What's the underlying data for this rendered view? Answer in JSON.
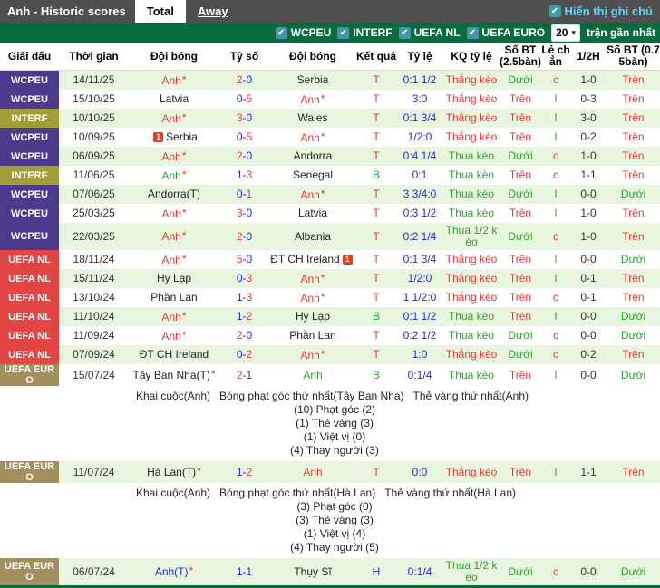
{
  "topbar": {
    "title": "Anh - Historic scores",
    "tabs": [
      {
        "label": "Total",
        "active": true
      },
      {
        "label": "Away",
        "active": false
      }
    ],
    "show_notes": {
      "label": "Hiển thị ghi chú",
      "checked": true
    }
  },
  "filterbar": {
    "filters": [
      {
        "label": "WCPEU",
        "checked": true
      },
      {
        "label": "INTERF",
        "checked": true
      },
      {
        "label": "UEFA NL",
        "checked": true
      },
      {
        "label": "UEFA EURO",
        "checked": true
      }
    ],
    "match_count": "20",
    "recent_label": "trận gần nhất"
  },
  "icons": {
    "check": "✔",
    "chevron": "▾",
    "red_card_count": "1"
  },
  "league_colors": {
    "WCPEU": "#4e3a8c",
    "INTERF": "#a19e35",
    "UEFA NL": "#e34444",
    "UEFA EURO": "#a38f5d"
  },
  "value_colors": {
    "red": "#e03a3a",
    "green": "#2ea12e",
    "blue": "#2626d6",
    "black": "#222222",
    "stripe": "#e9f6df",
    "bar_green": "#0a6c3e"
  },
  "table": {
    "headers": [
      "Giải đấu",
      "Thời gian",
      "Đội bóng",
      "Tỷ số",
      "Đội bóng",
      "Kết quả",
      "Tỷ lệ",
      "KQ tỷ lệ",
      "Số BT (2.5bàn)",
      "Lẻ chẳn",
      "1/2H",
      "Số BT (0.75bàn)"
    ],
    "rows": [
      {
        "league": "WCPEU",
        "date": "14/11/25",
        "home": {
          "n": "Anh",
          "c": "red",
          "star": true
        },
        "score": {
          "h": "2",
          "a": "0",
          "hc": "red",
          "ac": "blue"
        },
        "away": {
          "n": "Serbia",
          "c": "black"
        },
        "result": {
          "t": "T",
          "c": "red"
        },
        "odds": "0:1 1/2",
        "kq": {
          "t": "Thắng kèo",
          "c": "red"
        },
        "bt25": {
          "t": "Dưới",
          "c": "green"
        },
        "oe": {
          "t": "c",
          "c": "red"
        },
        "ht": "1-0",
        "bt075": {
          "t": "Trên",
          "c": "red"
        },
        "bg": "g"
      },
      {
        "league": "WCPEU",
        "date": "15/10/25",
        "home": {
          "n": "Latvia",
          "c": "black"
        },
        "score": {
          "h": "0",
          "a": "5",
          "hc": "blue",
          "ac": "red"
        },
        "away": {
          "n": "Anh",
          "c": "red",
          "star": true
        },
        "result": {
          "t": "T",
          "c": "red"
        },
        "odds": "3:0",
        "kq": {
          "t": "Thắng kèo",
          "c": "red"
        },
        "bt25": {
          "t": "Trên",
          "c": "red"
        },
        "oe": {
          "t": "l",
          "c": "green"
        },
        "ht": "0-3",
        "bt075": {
          "t": "Trên",
          "c": "red"
        },
        "bg": "w"
      },
      {
        "league": "INTERF",
        "date": "10/10/25",
        "home": {
          "n": "Anh",
          "c": "red",
          "star": true
        },
        "score": {
          "h": "3",
          "a": "0",
          "hc": "red",
          "ac": "blue"
        },
        "away": {
          "n": "Wales",
          "c": "black"
        },
        "result": {
          "t": "T",
          "c": "red"
        },
        "odds": "0:1 3/4",
        "kq": {
          "t": "Thắng kèo",
          "c": "red"
        },
        "bt25": {
          "t": "Trên",
          "c": "red"
        },
        "oe": {
          "t": "l",
          "c": "green"
        },
        "ht": "3-0",
        "bt075": {
          "t": "Trên",
          "c": "red"
        },
        "bg": "g"
      },
      {
        "league": "WCPEU",
        "date": "10/09/25",
        "home": {
          "n": "Serbia",
          "c": "black",
          "icon_before": true
        },
        "score": {
          "h": "0",
          "a": "5",
          "hc": "blue",
          "ac": "red"
        },
        "away": {
          "n": "Anh",
          "c": "red",
          "star": true
        },
        "result": {
          "t": "T",
          "c": "red"
        },
        "odds": "1/2:0",
        "kq": {
          "t": "Thắng kèo",
          "c": "red"
        },
        "bt25": {
          "t": "Trên",
          "c": "red"
        },
        "oe": {
          "t": "l",
          "c": "green"
        },
        "ht": "0-2",
        "bt075": {
          "t": "Trên",
          "c": "red"
        },
        "bg": "w"
      },
      {
        "league": "WCPEU",
        "date": "06/09/25",
        "home": {
          "n": "Anh",
          "c": "red",
          "star": true
        },
        "score": {
          "h": "2",
          "a": "0",
          "hc": "red",
          "ac": "blue"
        },
        "away": {
          "n": "Andorra",
          "c": "black"
        },
        "result": {
          "t": "T",
          "c": "red"
        },
        "odds": "0:4 1/4",
        "kq": {
          "t": "Thua kèo",
          "c": "green"
        },
        "bt25": {
          "t": "Dưới",
          "c": "green"
        },
        "oe": {
          "t": "c",
          "c": "red"
        },
        "ht": "1-0",
        "bt075": {
          "t": "Trên",
          "c": "red"
        },
        "bg": "g"
      },
      {
        "league": "INTERF",
        "date": "11/06/25",
        "home": {
          "n": "Anh",
          "c": "green",
          "star": true
        },
        "score": {
          "h": "1",
          "a": "3",
          "hc": "blue",
          "ac": "red"
        },
        "away": {
          "n": "Senegal",
          "c": "black"
        },
        "result": {
          "t": "B",
          "c": "green"
        },
        "odds": "0:1",
        "kq": {
          "t": "Thua kèo",
          "c": "green"
        },
        "bt25": {
          "t": "Trên",
          "c": "red"
        },
        "oe": {
          "t": "c",
          "c": "red"
        },
        "ht": "1-1",
        "bt075": {
          "t": "Trên",
          "c": "red"
        },
        "bg": "w"
      },
      {
        "league": "WCPEU",
        "date": "07/06/25",
        "home": {
          "n": "Andorra(T)",
          "c": "black"
        },
        "score": {
          "h": "0",
          "a": "1",
          "hc": "blue",
          "ac": "red"
        },
        "away": {
          "n": "Anh",
          "c": "red",
          "star": true
        },
        "result": {
          "t": "T",
          "c": "red"
        },
        "odds": "3 3/4:0",
        "kq": {
          "t": "Thua kèo",
          "c": "green"
        },
        "bt25": {
          "t": "Dưới",
          "c": "green"
        },
        "oe": {
          "t": "l",
          "c": "green"
        },
        "ht": "0-0",
        "bt075": {
          "t": "Dưới",
          "c": "green"
        },
        "bg": "g"
      },
      {
        "league": "WCPEU",
        "date": "25/03/25",
        "home": {
          "n": "Anh",
          "c": "red",
          "star": true
        },
        "score": {
          "h": "3",
          "a": "0",
          "hc": "red",
          "ac": "blue"
        },
        "away": {
          "n": "Latvia",
          "c": "black"
        },
        "result": {
          "t": "T",
          "c": "red"
        },
        "odds": "0:3 1/2",
        "kq": {
          "t": "Thua kèo",
          "c": "green"
        },
        "bt25": {
          "t": "Trên",
          "c": "red"
        },
        "oe": {
          "t": "l",
          "c": "green"
        },
        "ht": "1-0",
        "bt075": {
          "t": "Trên",
          "c": "red"
        },
        "bg": "w"
      },
      {
        "league": "WCPEU",
        "date": "22/03/25",
        "home": {
          "n": "Anh",
          "c": "red",
          "star": true
        },
        "score": {
          "h": "2",
          "a": "0",
          "hc": "red",
          "ac": "blue"
        },
        "away": {
          "n": "Albania",
          "c": "black"
        },
        "result": {
          "t": "T",
          "c": "red"
        },
        "odds": "0:2 1/4",
        "kq": {
          "t": "Thua 1/2 kèo",
          "c": "green"
        },
        "bt25": {
          "t": "Dưới",
          "c": "green"
        },
        "oe": {
          "t": "c",
          "c": "red"
        },
        "ht": "1-0",
        "bt075": {
          "t": "Trên",
          "c": "red"
        },
        "bg": "g"
      },
      {
        "league": "UEFA NL",
        "date": "18/11/24",
        "home": {
          "n": "Anh",
          "c": "red",
          "star": true
        },
        "score": {
          "h": "5",
          "a": "0",
          "hc": "red",
          "ac": "blue"
        },
        "away": {
          "n": "ĐT CH Ireland",
          "c": "black",
          "icon_after": true
        },
        "result": {
          "t": "T",
          "c": "red"
        },
        "odds": "0:1 3/4",
        "kq": {
          "t": "Thắng kèo",
          "c": "red"
        },
        "bt25": {
          "t": "Trên",
          "c": "red"
        },
        "oe": {
          "t": "l",
          "c": "green"
        },
        "ht": "0-0",
        "bt075": {
          "t": "Dưới",
          "c": "green"
        },
        "bg": "w"
      },
      {
        "league": "UEFA NL",
        "date": "15/11/24",
        "home": {
          "n": "Hy Lạp",
          "c": "black"
        },
        "score": {
          "h": "0",
          "a": "3",
          "hc": "blue",
          "ac": "red"
        },
        "away": {
          "n": "Anh",
          "c": "red",
          "star": true
        },
        "result": {
          "t": "T",
          "c": "red"
        },
        "odds": "1/2:0",
        "kq": {
          "t": "Thắng kèo",
          "c": "red"
        },
        "bt25": {
          "t": "Trên",
          "c": "red"
        },
        "oe": {
          "t": "l",
          "c": "green"
        },
        "ht": "0-1",
        "bt075": {
          "t": "Trên",
          "c": "red"
        },
        "bg": "g"
      },
      {
        "league": "UEFA NL",
        "date": "13/10/24",
        "home": {
          "n": "Phần Lan",
          "c": "black"
        },
        "score": {
          "h": "1",
          "a": "3",
          "hc": "blue",
          "ac": "red"
        },
        "away": {
          "n": "Anh",
          "c": "red",
          "star": true
        },
        "result": {
          "t": "T",
          "c": "red"
        },
        "odds": "1 1/2:0",
        "kq": {
          "t": "Thắng kèo",
          "c": "red"
        },
        "bt25": {
          "t": "Trên",
          "c": "red"
        },
        "oe": {
          "t": "c",
          "c": "red"
        },
        "ht": "0-1",
        "bt075": {
          "t": "Trên",
          "c": "red"
        },
        "bg": "w"
      },
      {
        "league": "UEFA NL",
        "date": "11/10/24",
        "home": {
          "n": "Anh",
          "c": "red",
          "star": true
        },
        "score": {
          "h": "1",
          "a": "2",
          "hc": "blue",
          "ac": "red"
        },
        "away": {
          "n": "Hy Lạp",
          "c": "black"
        },
        "result": {
          "t": "B",
          "c": "green"
        },
        "odds": "0:1 1/2",
        "kq": {
          "t": "Thua kèo",
          "c": "green"
        },
        "bt25": {
          "t": "Trên",
          "c": "red"
        },
        "oe": {
          "t": "l",
          "c": "green"
        },
        "ht": "0-0",
        "bt075": {
          "t": "Dưới",
          "c": "green"
        },
        "bg": "g"
      },
      {
        "league": "UEFA NL",
        "date": "11/09/24",
        "home": {
          "n": "Anh",
          "c": "red",
          "star": true
        },
        "score": {
          "h": "2",
          "a": "0",
          "hc": "red",
          "ac": "blue"
        },
        "away": {
          "n": "Phần Lan",
          "c": "black"
        },
        "result": {
          "t": "T",
          "c": "red"
        },
        "odds": "0:2 1/2",
        "kq": {
          "t": "Thua kèo",
          "c": "green"
        },
        "bt25": {
          "t": "Dưới",
          "c": "green"
        },
        "oe": {
          "t": "c",
          "c": "red"
        },
        "ht": "0-0",
        "bt075": {
          "t": "Dưới",
          "c": "green"
        },
        "bg": "w"
      },
      {
        "league": "UEFA NL",
        "date": "07/09/24",
        "home": {
          "n": "ĐT CH Ireland",
          "c": "black"
        },
        "score": {
          "h": "0",
          "a": "2",
          "hc": "blue",
          "ac": "red"
        },
        "away": {
          "n": "Anh",
          "c": "red",
          "star": true
        },
        "result": {
          "t": "T",
          "c": "red"
        },
        "odds": "1:0",
        "kq": {
          "t": "Thắng kèo",
          "c": "red"
        },
        "bt25": {
          "t": "Dưới",
          "c": "green"
        },
        "oe": {
          "t": "c",
          "c": "red"
        },
        "ht": "0-2",
        "bt075": {
          "t": "Trên",
          "c": "red"
        },
        "bg": "g"
      },
      {
        "league": "UEFA EURO",
        "date": "15/07/24",
        "home": {
          "n": "Tây Ban Nha(T)",
          "c": "black",
          "star": true
        },
        "score": {
          "h": "2",
          "a": "1",
          "hc": "red",
          "ac": "blue"
        },
        "away": {
          "n": "Anh",
          "c": "green"
        },
        "result": {
          "t": "B",
          "c": "green"
        },
        "odds": "0:1/4",
        "kq": {
          "t": "Thua kèo",
          "c": "green"
        },
        "bt25": {
          "t": "Trên",
          "c": "red"
        },
        "oe": {
          "t": "l",
          "c": "green"
        },
        "ht": "0-0",
        "bt075": {
          "t": "Dưới",
          "c": "green"
        },
        "bg": "w"
      },
      {
        "type": "note",
        "header": [
          "Khai cuộc(Anh)",
          "Bóng phạt góc thứ nhất(Tây Ban Nha)",
          "Thẻ vàng thứ nhất(Anh)"
        ],
        "lines": [
          "(10) Phạt góc (2)",
          "(1) Thẻ vàng (3)",
          "(1) Việt vị (0)",
          "(4) Thay người (3)"
        ]
      },
      {
        "league": "UEFA EURO",
        "date": "11/07/24",
        "home": {
          "n": "Hà Lan(T)",
          "c": "black",
          "star": true
        },
        "score": {
          "h": "1",
          "a": "2",
          "hc": "blue",
          "ac": "red"
        },
        "away": {
          "n": "Anh",
          "c": "red"
        },
        "result": {
          "t": "T",
          "c": "red"
        },
        "odds": "0:0",
        "kq": {
          "t": "Thắng kèo",
          "c": "red"
        },
        "bt25": {
          "t": "Trên",
          "c": "red"
        },
        "oe": {
          "t": "l",
          "c": "green"
        },
        "ht": "1-1",
        "bt075": {
          "t": "Trên",
          "c": "red"
        },
        "bg": "g"
      },
      {
        "type": "note",
        "header": [
          "Khai cuộc(Anh)",
          "Bóng phạt góc thứ nhất(Hà Lan)",
          "Thẻ vàng thứ nhất(Hà Lan)"
        ],
        "lines": [
          "(3) Phạt góc (0)",
          "(3) Thẻ vàng (3)",
          "(1) Việt vị (4)",
          "(4) Thay người (5)"
        ]
      },
      {
        "league": "UEFA EURO",
        "date": "06/07/24",
        "home": {
          "n": "Anh(T)",
          "c": "blue",
          "star": true
        },
        "score": {
          "h": "1",
          "a": "1",
          "hc": "blue",
          "ac": "blue"
        },
        "away": {
          "n": "Thụy Sĩ",
          "c": "black"
        },
        "result": {
          "t": "H",
          "c": "blue"
        },
        "odds": "0:1/4",
        "kq": {
          "t": "Thua 1/2 kèo",
          "c": "green"
        },
        "bt25": {
          "t": "Dưới",
          "c": "green"
        },
        "oe": {
          "t": "c",
          "c": "red"
        },
        "ht": "0-0",
        "bt075": {
          "t": "Dưới",
          "c": "green"
        },
        "bg": "g"
      }
    ]
  }
}
